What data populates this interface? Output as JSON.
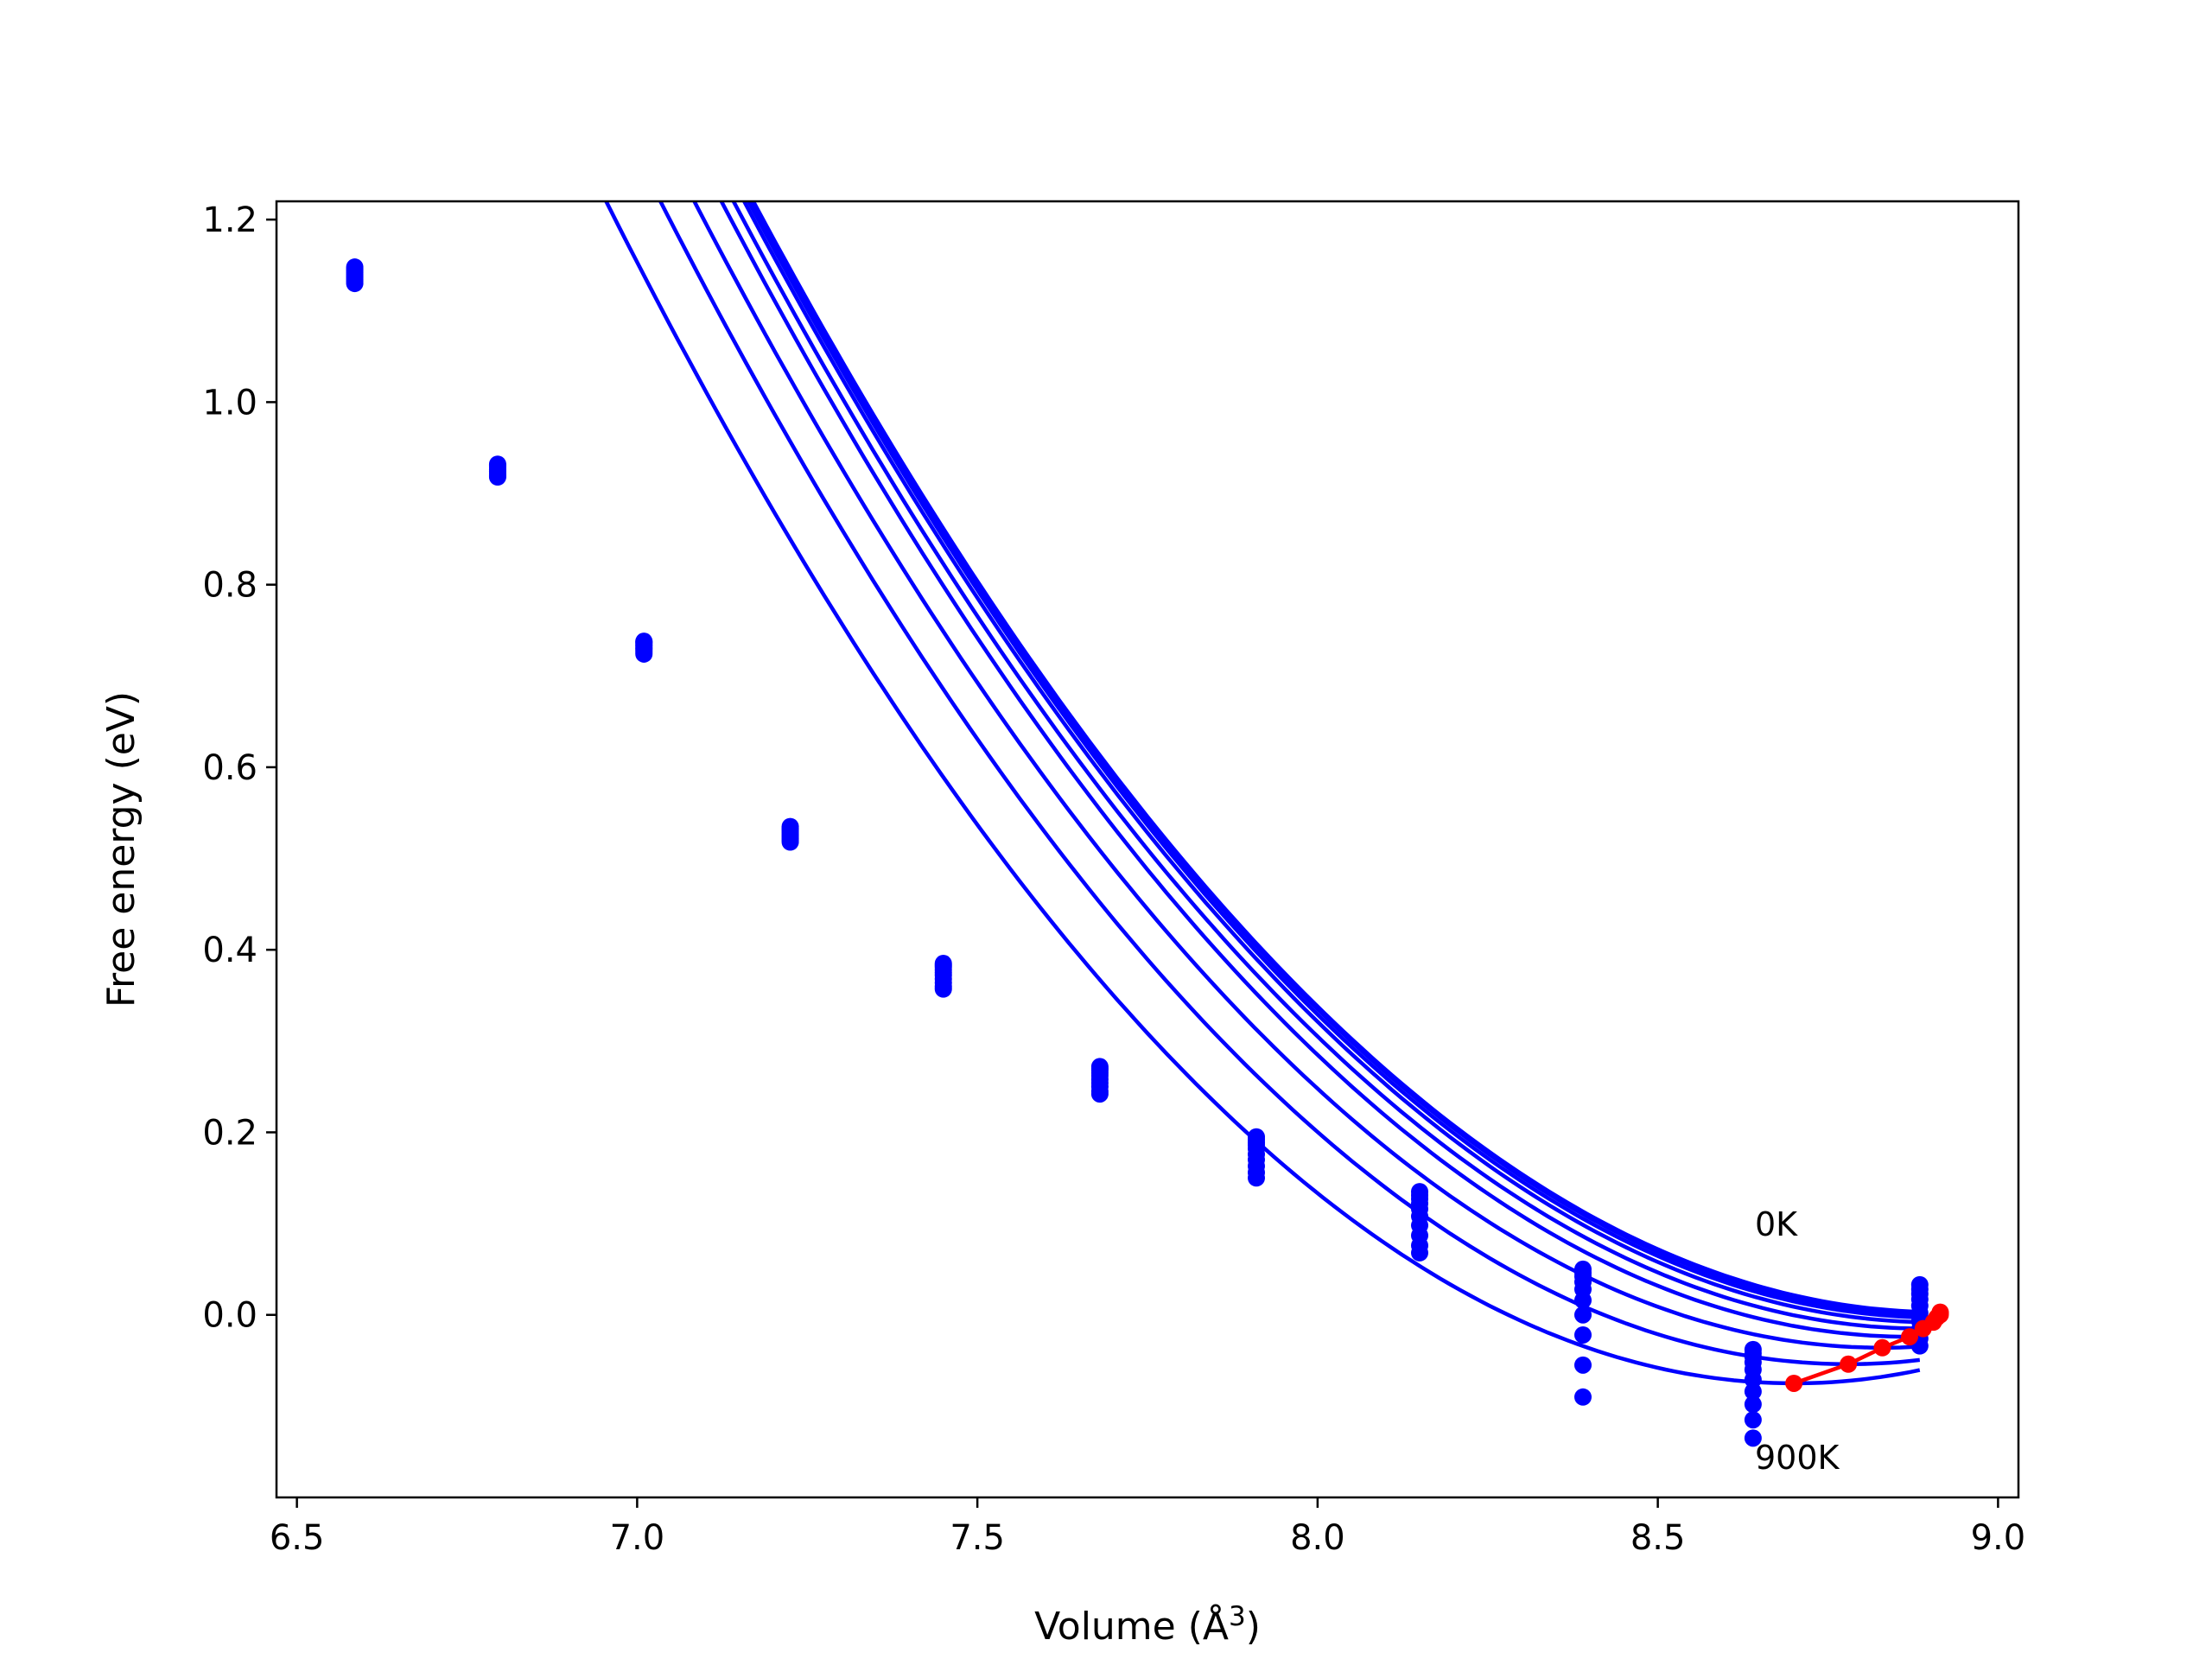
{
  "chart_data": {
    "type": "line",
    "title": "",
    "xlabel": "Volume (Å",
    "xlabel_superscript": "3",
    "xlabel_close": ")",
    "ylabel": "Free energy (eV)",
    "xlim": [
      6.47,
      9.03
    ],
    "ylim": [
      -0.2,
      1.22
    ],
    "xticks": [
      6.5,
      7.0,
      7.5,
      8.0,
      8.5,
      9.0
    ],
    "yticks": [
      0.0,
      0.2,
      0.4,
      0.6,
      0.8,
      1.0,
      1.2
    ],
    "xtick_labels": [
      "6.5",
      "7.0",
      "7.5",
      "8.0",
      "8.5",
      "9.0"
    ],
    "ytick_labels": [
      "0.0",
      "0.2",
      "0.4",
      "0.6",
      "0.8",
      "1.0",
      "1.2"
    ],
    "grid": false,
    "legend": "none",
    "annotations": [
      {
        "text": "0K",
        "x": 8.64,
        "y": 0.085
      },
      {
        "text": "900K",
        "x": 8.64,
        "y": -0.175
      }
    ],
    "colors": {
      "fit_curves": "#0000ff",
      "data_points": "#0000ff",
      "minimum_path": "#ff0000",
      "axes": "#000000"
    },
    "volumes": [
      6.585,
      6.795,
      7.01,
      7.225,
      7.45,
      7.68,
      7.91,
      8.15,
      8.39,
      8.64,
      8.885
    ],
    "series": [
      {
        "values": [
          1.148,
          0.932,
          0.738,
          0.535,
          0.385,
          0.272,
          0.195,
          0.135,
          0.05,
          -0.038,
          0.033
        ],
        "fit": {
          "a": 0.4,
          "v0": 8.915,
          "e0": 0.003,
          "vmin": 6.585,
          "vmax": 8.885
        }
      },
      {
        "values": [
          1.146,
          0.931,
          0.737,
          0.533,
          0.383,
          0.27,
          0.192,
          0.131,
          0.046,
          -0.042,
          0.028
        ],
        "fit": {
          "a": 0.4,
          "v0": 8.915,
          "e0": 0.002,
          "vmin": 6.585,
          "vmax": 8.885
        }
      },
      {
        "values": [
          1.144,
          0.93,
          0.736,
          0.532,
          0.381,
          0.268,
          0.189,
          0.127,
          0.042,
          -0.046,
          0.023
        ],
        "fit": {
          "a": 0.4,
          "v0": 8.915,
          "e0": 0.0,
          "vmin": 6.585,
          "vmax": 8.885
        }
      },
      {
        "values": [
          1.142,
          0.928,
          0.734,
          0.53,
          0.378,
          0.265,
          0.186,
          0.122,
          0.036,
          -0.052,
          0.017
        ],
        "fit": {
          "a": 0.401,
          "v0": 8.91,
          "e0": -0.003,
          "vmin": 6.585,
          "vmax": 8.885
        }
      },
      {
        "values": [
          1.14,
          0.926,
          0.733,
          0.528,
          0.375,
          0.262,
          0.182,
          0.116,
          0.028,
          -0.06,
          0.01
        ],
        "fit": {
          "a": 0.402,
          "v0": 8.905,
          "e0": -0.008,
          "vmin": 6.585,
          "vmax": 8.885
        }
      },
      {
        "values": [
          1.138,
          0.924,
          0.731,
          0.526,
          0.372,
          0.258,
          0.176,
          0.108,
          0.016,
          -0.071,
          0.002
        ],
        "fit": {
          "a": 0.404,
          "v0": 8.89,
          "e0": -0.015,
          "vmin": 6.585,
          "vmax": 8.885
        }
      },
      {
        "values": [
          1.136,
          0.922,
          0.73,
          0.524,
          0.368,
          0.254,
          0.17,
          0.098,
          0.0,
          -0.084,
          -0.007
        ],
        "fit": {
          "a": 0.408,
          "v0": 8.87,
          "e0": -0.024,
          "vmin": 6.585,
          "vmax": 8.885
        }
      },
      {
        "values": [
          1.134,
          0.92,
          0.728,
          0.522,
          0.364,
          0.25,
          0.163,
          0.087,
          -0.022,
          -0.098,
          -0.016
        ],
        "fit": {
          "a": 0.412,
          "v0": 8.83,
          "e0": -0.036,
          "vmin": 6.585,
          "vmax": 8.885
        }
      },
      {
        "values": [
          1.132,
          0.919,
          0.726,
          0.52,
          0.36,
          0.245,
          0.156,
          0.076,
          -0.055,
          -0.115,
          -0.026
        ],
        "fit": {
          "a": 0.418,
          "v0": 8.78,
          "e0": -0.054,
          "vmin": 6.585,
          "vmax": 8.885
        }
      },
      {
        "values": [
          1.13,
          0.918,
          0.724,
          0.518,
          0.357,
          0.242,
          0.15,
          0.068,
          -0.09,
          -0.135,
          -0.034
        ],
        "fit": {
          "a": 0.425,
          "v0": 8.7,
          "e0": -0.075,
          "vmin": 6.585,
          "vmax": 8.885
        }
      }
    ],
    "minimum_path": {
      "x": [
        8.915,
        8.915,
        8.915,
        8.91,
        8.905,
        8.89,
        8.87,
        8.83,
        8.78,
        8.7
      ],
      "y": [
        0.003,
        0.002,
        0.0,
        -0.003,
        -0.008,
        -0.015,
        -0.024,
        -0.036,
        -0.054,
        -0.075
      ]
    }
  }
}
